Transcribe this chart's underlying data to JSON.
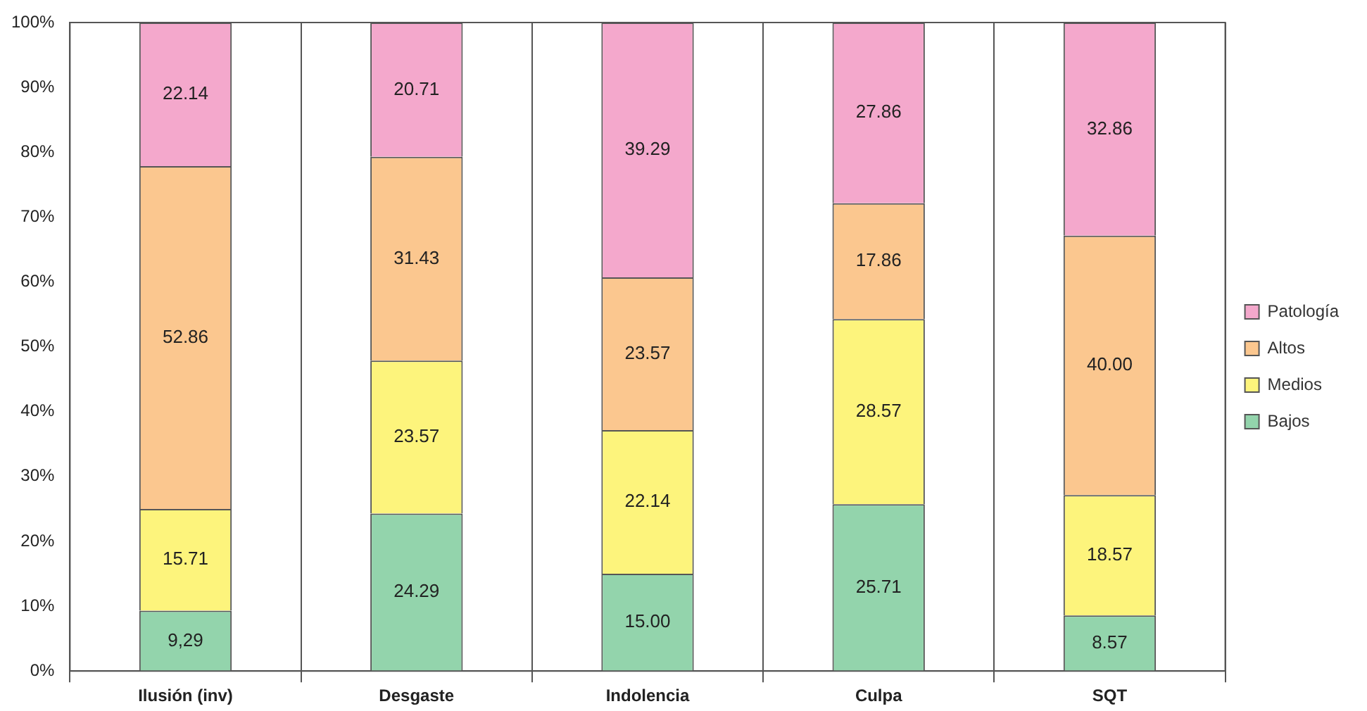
{
  "chart_data": {
    "type": "bar",
    "stacked": true,
    "categories": [
      "Ilusión (inv)",
      "Desgaste",
      "Indolencia",
      "Culpa",
      "SQT"
    ],
    "series": [
      {
        "name": "Bajos",
        "color": "#93d4ac",
        "values": [
          9.29,
          24.29,
          15.0,
          25.71,
          8.57
        ],
        "value_labels": [
          "9,29",
          "24.29",
          "15.00",
          "25.71",
          "8.57"
        ]
      },
      {
        "name": "Medios",
        "color": "#fdf47c",
        "values": [
          15.71,
          23.57,
          22.14,
          28.57,
          18.57
        ],
        "value_labels": [
          "15.71",
          "23.57",
          "22.14",
          "28.57",
          "18.57"
        ]
      },
      {
        "name": "Altos",
        "color": "#fbc78f",
        "values": [
          52.86,
          31.43,
          23.57,
          17.86,
          40.0
        ],
        "value_labels": [
          "52.86",
          "31.43",
          "23.57",
          "17.86",
          "40.00"
        ]
      },
      {
        "name": "Patología",
        "color": "#f4a8cc",
        "values": [
          22.14,
          20.71,
          39.29,
          27.86,
          32.86
        ],
        "value_labels": [
          "22.14",
          "20.71",
          "39.29",
          "27.86",
          "32.86"
        ]
      }
    ],
    "ylim": [
      0,
      100
    ],
    "yticks": [
      {
        "value": 0,
        "label": "0%"
      },
      {
        "value": 10,
        "label": "10%"
      },
      {
        "value": 20,
        "label": "20%"
      },
      {
        "value": 30,
        "label": "30%"
      },
      {
        "value": 40,
        "label": "40%"
      },
      {
        "value": 50,
        "label": "50%"
      },
      {
        "value": 60,
        "label": "60%"
      },
      {
        "value": 70,
        "label": "70%"
      },
      {
        "value": 80,
        "label": "80%"
      },
      {
        "value": 90,
        "label": "90%"
      },
      {
        "value": 100,
        "label": "100%"
      }
    ],
    "grid": "x",
    "legend": "right"
  }
}
